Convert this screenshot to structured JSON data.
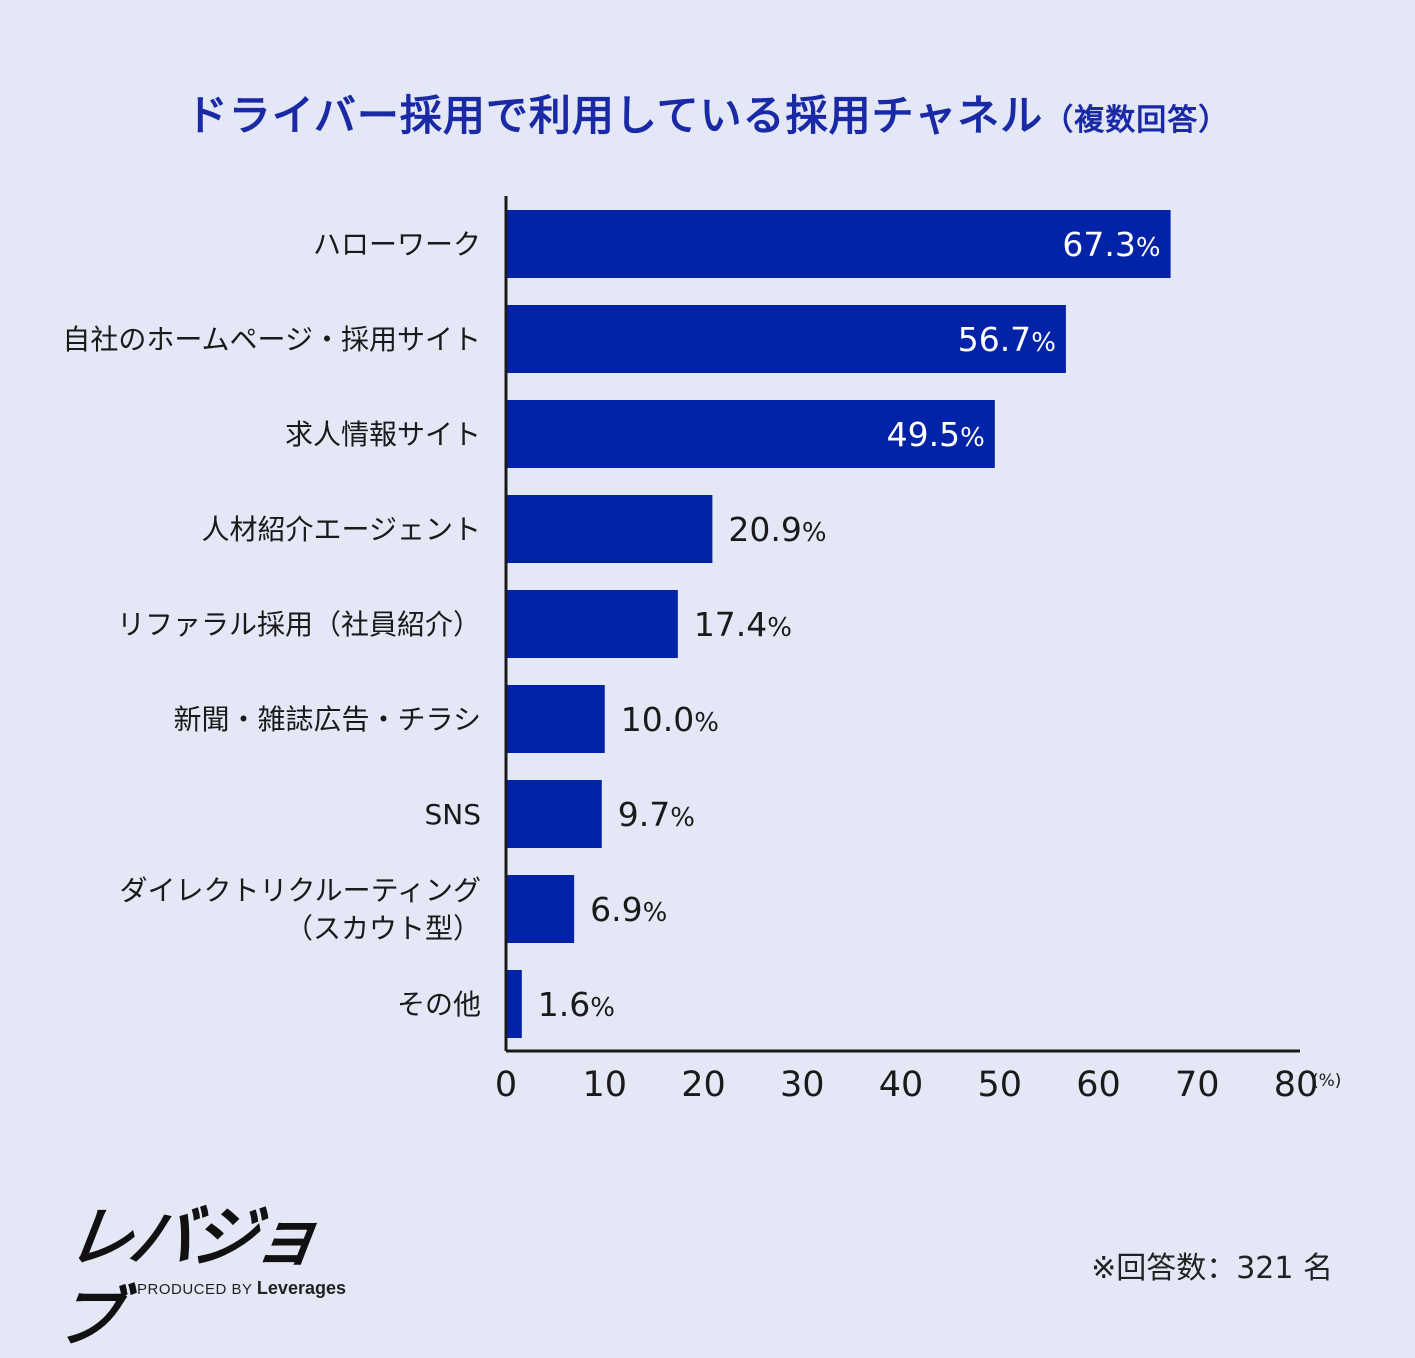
{
  "title": {
    "main": "ドライバー採用で利用している採用チャネル",
    "sub": "（複数回答）"
  },
  "chart_data": {
    "type": "bar",
    "orientation": "horizontal",
    "categories": [
      [
        "ハローワーク"
      ],
      [
        "自社のホームページ・採用サイト"
      ],
      [
        "求人情報サイト"
      ],
      [
        "人材紹介エージェント"
      ],
      [
        "リファラル採用（社員紹介）"
      ],
      [
        "新聞・雑誌広告・チラシ"
      ],
      [
        "SNS"
      ],
      [
        "ダイレクトリクルーティング",
        "（スカウト型）"
      ],
      [
        "その他"
      ]
    ],
    "values": [
      67.3,
      56.7,
      49.5,
      20.9,
      17.4,
      10.0,
      9.7,
      6.9,
      1.6
    ],
    "value_labels": [
      "67.3",
      "56.7",
      "49.5",
      "20.9",
      "17.4",
      "10.0",
      "9.7",
      "6.9",
      "1.6"
    ],
    "value_unit": "%",
    "xlim": [
      0,
      80
    ],
    "xticks": [
      0,
      10,
      20,
      30,
      40,
      50,
      60,
      70,
      80
    ],
    "xunit": "(%)",
    "grid": false,
    "bar_color": "#0222a8"
  },
  "logo": {
    "name": "レバジョブ",
    "produced_by": "PRODUCED BY",
    "brand": "Leverages"
  },
  "note": "※回答数：321 名"
}
